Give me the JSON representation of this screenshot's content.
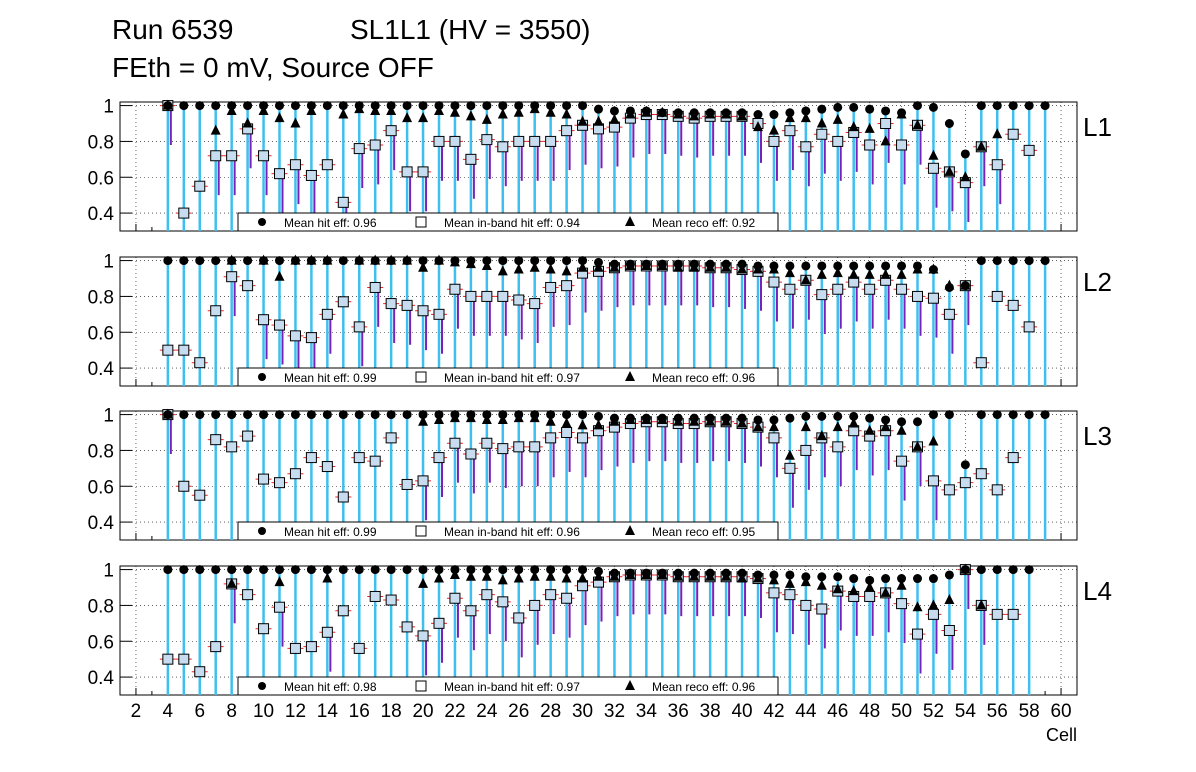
{
  "header": {
    "run": "Run 6539",
    "chamber": "SL1L1 (HV = 3550)",
    "settings": "FEth = 0 mV, Source OFF"
  },
  "chart_data": {
    "type": "scatter",
    "xlabel": "Cell",
    "xlim": [
      1,
      61
    ],
    "ylim": [
      0.3,
      1.02
    ],
    "x_ticks": [
      2,
      4,
      6,
      8,
      10,
      12,
      14,
      16,
      18,
      20,
      22,
      24,
      26,
      28,
      30,
      32,
      34,
      36,
      38,
      40,
      42,
      44,
      46,
      48,
      50,
      52,
      54,
      56,
      58,
      60
    ],
    "y_ticks": [
      0.4,
      0.6,
      0.8,
      1
    ],
    "grid": true,
    "colors": {
      "hit": "#000000",
      "inband": "#1e9ad6",
      "inband_fill": "#c8dcef",
      "reco": "#000000",
      "hit_err": "#3fbfef",
      "reco_err": "#7a22b8",
      "inband_err": "#e8242b"
    },
    "cells": [
      4,
      5,
      6,
      7,
      8,
      9,
      10,
      11,
      12,
      13,
      14,
      15,
      16,
      17,
      18,
      19,
      20,
      21,
      22,
      23,
      24,
      25,
      26,
      27,
      28,
      29,
      30,
      31,
      32,
      33,
      34,
      35,
      36,
      37,
      38,
      39,
      40,
      41,
      42,
      43,
      44,
      45,
      46,
      47,
      48,
      49,
      50,
      51,
      52,
      53,
      54,
      55,
      56,
      57,
      58,
      59
    ],
    "panels": [
      {
        "label": "L1",
        "legend": {
          "hit": "Mean hit  eff: 0.96",
          "inband": "Mean in-band hit eff: 0.94",
          "reco": "Mean reco eff: 0.92"
        },
        "hit": [
          1,
          1,
          1,
          1,
          1,
          1,
          1,
          1,
          1,
          1,
          1,
          1,
          1,
          1,
          1,
          1,
          1,
          1,
          1,
          1,
          1,
          1,
          1,
          1,
          1,
          1,
          1,
          0.98,
          0.97,
          0.97,
          0.97,
          0.96,
          0.96,
          0.96,
          0.96,
          0.96,
          0.96,
          0.95,
          0.95,
          0.96,
          0.97,
          0.98,
          0.99,
          0.99,
          0.98,
          0.97,
          0.96,
          1,
          0.99,
          0.9,
          0.73,
          1,
          1,
          1,
          1,
          1
        ],
        "inband": [
          1,
          0.4,
          0.55,
          0.72,
          0.72,
          0.87,
          0.72,
          0.62,
          0.67,
          0.61,
          0.67,
          0.46,
          0.76,
          0.78,
          0.86,
          0.63,
          0.63,
          0.8,
          0.8,
          0.7,
          0.81,
          0.77,
          0.8,
          0.8,
          0.8,
          0.86,
          0.89,
          0.87,
          0.88,
          0.93,
          0.95,
          0.95,
          0.94,
          0.93,
          0.94,
          0.94,
          0.94,
          0.9,
          0.8,
          0.86,
          0.77,
          0.84,
          0.8,
          0.85,
          0.78,
          0.9,
          0.78,
          0.89,
          0.65,
          0.63,
          0.57,
          0.77,
          0.67,
          0.84,
          0.75,
          null
        ],
        "reco": [
          1,
          null,
          null,
          0.86,
          0.97,
          0.9,
          0.97,
          0.93,
          0.9,
          0.97,
          null,
          0.95,
          0.98,
          0.97,
          0.97,
          0.93,
          0.93,
          0.97,
          0.96,
          0.94,
          0.92,
          0.95,
          0.96,
          0.98,
          0.96,
          0.95,
          0.91,
          0.91,
          0.92,
          0.95,
          0.96,
          0.96,
          0.95,
          0.94,
          0.95,
          0.95,
          0.94,
          0.88,
          0.86,
          0.93,
          0.93,
          0.9,
          0.92,
          0.88,
          0.87,
          0.8,
          0.95,
          0.89,
          0.72,
          0.63,
          0.6,
          0.77,
          0.84,
          null,
          null,
          null
        ]
      },
      {
        "label": "L2",
        "legend": {
          "hit": "Mean hit  eff: 0.99",
          "inband": "Mean in-band hit eff: 0.97",
          "reco": "Mean reco eff: 0.96"
        },
        "hit": [
          1,
          1,
          1,
          1,
          1,
          1,
          1,
          1,
          1,
          1,
          1,
          1,
          1,
          1,
          1,
          1,
          1,
          1,
          1,
          1,
          1,
          1,
          1,
          1,
          1,
          1,
          1,
          0.99,
          0.98,
          0.98,
          0.98,
          0.98,
          0.98,
          0.98,
          0.98,
          0.98,
          0.98,
          0.97,
          0.97,
          0.97,
          0.97,
          0.97,
          0.97,
          0.97,
          0.97,
          0.97,
          0.97,
          0.97,
          0.95,
          0.85,
          0.86,
          1,
          1,
          1,
          1,
          1
        ],
        "inband": [
          0.5,
          0.5,
          0.43,
          0.72,
          0.91,
          0.86,
          0.67,
          0.64,
          0.58,
          0.57,
          0.7,
          0.77,
          0.63,
          0.85,
          0.76,
          0.75,
          0.72,
          0.7,
          0.84,
          0.8,
          0.8,
          0.8,
          0.78,
          0.76,
          0.85,
          0.86,
          0.93,
          0.94,
          0.96,
          0.97,
          0.97,
          0.97,
          0.97,
          0.97,
          0.96,
          0.96,
          0.95,
          0.94,
          0.88,
          0.84,
          0.89,
          0.81,
          0.84,
          0.88,
          0.84,
          0.89,
          0.84,
          0.8,
          0.79,
          0.7,
          0.86,
          0.43,
          0.8,
          0.75,
          0.63,
          null
        ],
        "reco": [
          null,
          null,
          null,
          null,
          1,
          null,
          1,
          0.91,
          1,
          1,
          1,
          null,
          1,
          1,
          1,
          1,
          0.96,
          1,
          0.99,
          0.98,
          0.97,
          0.94,
          0.95,
          0.96,
          0.95,
          0.94,
          0.96,
          0.96,
          0.96,
          0.97,
          0.97,
          0.97,
          0.96,
          0.96,
          0.96,
          0.96,
          0.95,
          0.95,
          0.95,
          0.93,
          0.89,
          0.92,
          0.93,
          0.92,
          0.92,
          0.92,
          0.92,
          0.95,
          0.95,
          0.86,
          0.86,
          null,
          null,
          null,
          null,
          null
        ]
      },
      {
        "label": "L3",
        "legend": {
          "hit": "Mean hit  eff: 0.99",
          "inband": "Mean in-band hit eff: 0.96",
          "reco": "Mean reco eff: 0.95"
        },
        "hit": [
          1,
          1,
          1,
          1,
          1,
          1,
          1,
          1,
          1,
          1,
          1,
          1,
          1,
          1,
          1,
          1,
          1,
          1,
          1,
          1,
          1,
          1,
          1,
          1,
          1,
          1,
          1,
          0.99,
          0.98,
          0.98,
          0.98,
          0.98,
          0.98,
          0.98,
          0.98,
          0.98,
          0.98,
          0.97,
          0.97,
          0.98,
          0.99,
          0.99,
          0.99,
          0.99,
          0.98,
          0.97,
          0.96,
          0.96,
          1,
          1,
          0.72,
          1,
          1,
          1,
          1,
          1
        ],
        "inband": [
          1,
          0.6,
          0.55,
          0.86,
          0.82,
          0.88,
          0.64,
          0.62,
          0.67,
          0.76,
          0.71,
          0.54,
          0.76,
          0.74,
          0.87,
          0.61,
          0.63,
          0.76,
          0.84,
          0.78,
          0.84,
          0.81,
          0.82,
          0.82,
          0.87,
          0.9,
          0.87,
          0.91,
          0.93,
          0.95,
          0.96,
          0.96,
          0.95,
          0.95,
          0.96,
          0.96,
          0.95,
          0.93,
          0.87,
          0.7,
          0.8,
          0.87,
          0.82,
          0.91,
          0.88,
          0.91,
          0.74,
          0.82,
          0.63,
          0.58,
          0.62,
          0.67,
          0.58,
          0.76,
          null,
          null
        ],
        "reco": [
          1,
          null,
          null,
          null,
          null,
          null,
          null,
          null,
          null,
          null,
          null,
          null,
          null,
          null,
          null,
          null,
          0.96,
          0.97,
          0.98,
          0.98,
          0.97,
          0.97,
          0.98,
          0.98,
          0.96,
          0.95,
          0.94,
          0.94,
          0.96,
          0.97,
          0.97,
          0.97,
          0.96,
          0.96,
          0.96,
          0.96,
          0.95,
          0.93,
          0.93,
          0.77,
          0.93,
          0.88,
          0.93,
          0.95,
          0.91,
          0.93,
          0.91,
          0.82,
          0.85,
          null,
          null,
          null,
          null,
          null,
          null,
          null
        ]
      },
      {
        "label": "L4",
        "legend": {
          "hit": "Mean hit  eff: 0.98",
          "inband": "Mean in-band hit eff: 0.97",
          "reco": "Mean reco eff: 0.96"
        },
        "hit": [
          1,
          1,
          1,
          1,
          1,
          1,
          1,
          1,
          1,
          1,
          1,
          1,
          1,
          1,
          1,
          1,
          1,
          1,
          1,
          1,
          1,
          1,
          1,
          1,
          1,
          1,
          1,
          0.99,
          0.98,
          0.98,
          0.98,
          0.98,
          0.98,
          0.98,
          0.98,
          0.98,
          0.98,
          0.97,
          0.97,
          0.97,
          0.96,
          0.96,
          0.96,
          0.95,
          0.94,
          0.95,
          0.95,
          0.95,
          0.95,
          0.97,
          1,
          1,
          1,
          1,
          1,
          null
        ],
        "inband": [
          0.5,
          0.5,
          0.43,
          0.57,
          0.92,
          0.86,
          0.67,
          0.79,
          0.56,
          0.57,
          0.65,
          0.77,
          0.56,
          0.85,
          0.83,
          0.68,
          0.63,
          0.7,
          0.84,
          0.77,
          0.86,
          0.82,
          0.73,
          0.8,
          0.86,
          0.84,
          0.91,
          0.93,
          0.96,
          0.97,
          0.97,
          0.97,
          0.96,
          0.96,
          0.96,
          0.96,
          0.96,
          0.95,
          0.87,
          0.86,
          0.8,
          0.78,
          0.88,
          0.85,
          0.85,
          0.87,
          0.81,
          0.64,
          0.75,
          0.66,
          1,
          0.8,
          0.75,
          0.75,
          null,
          null
        ],
        "reco": [
          null,
          null,
          null,
          null,
          0.92,
          null,
          null,
          0.93,
          null,
          null,
          0.95,
          null,
          null,
          null,
          null,
          null,
          0.92,
          0.95,
          0.97,
          0.96,
          0.96,
          0.94,
          0.95,
          0.96,
          0.96,
          0.95,
          0.95,
          0.96,
          0.96,
          0.97,
          0.97,
          0.97,
          0.96,
          0.96,
          0.96,
          0.96,
          0.95,
          0.95,
          0.94,
          0.92,
          0.93,
          0.91,
          0.89,
          0.88,
          0.9,
          0.87,
          0.91,
          0.79,
          0.8,
          0.83,
          1,
          0.8,
          null,
          null,
          null,
          null
        ]
      }
    ]
  }
}
